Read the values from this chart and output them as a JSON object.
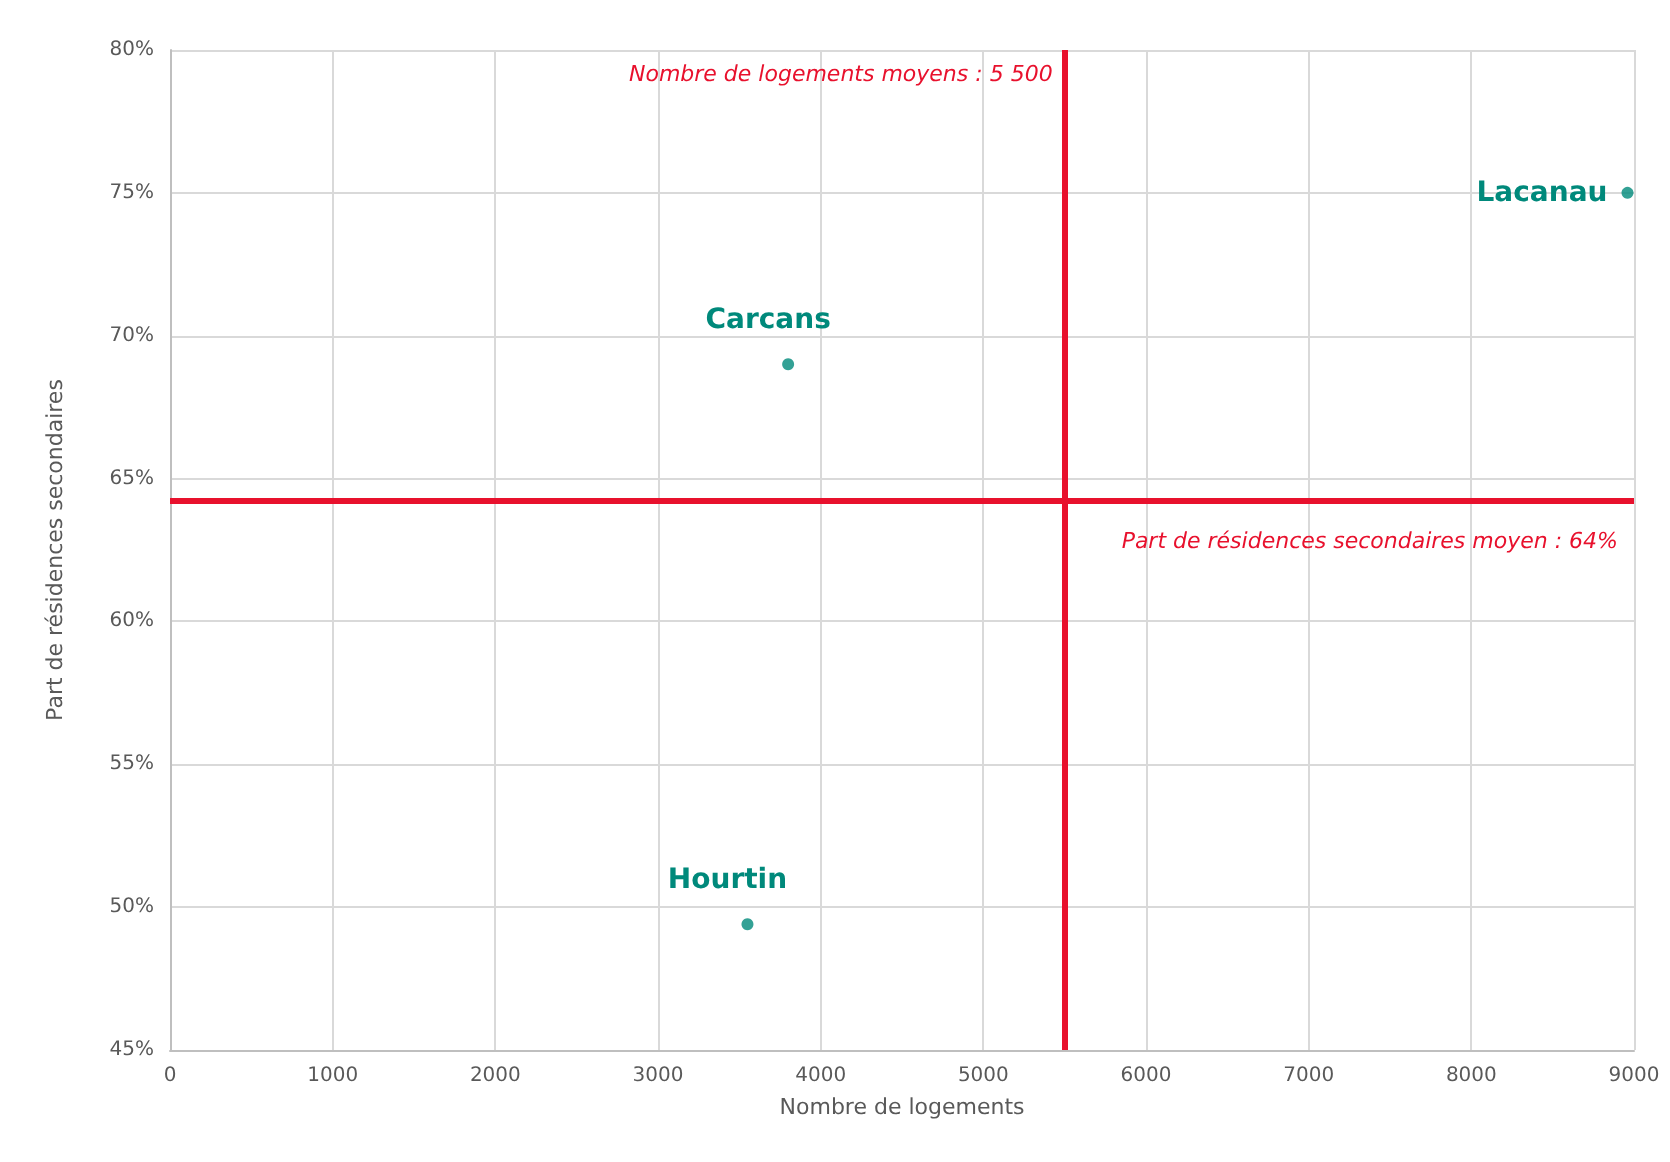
{
  "chart_data": {
    "type": "scatter",
    "xlabel": "Nombre de logements",
    "ylabel": "Part de résidences secondaires",
    "x": [
      3550,
      3800,
      8960
    ],
    "series": [
      {
        "color": "#00897b",
        "values": [
          49.4,
          69.0,
          75.0
        ]
      }
    ],
    "xlim": [
      0,
      9000
    ],
    "xticks": [
      0,
      1000,
      2000,
      3000,
      4000,
      5000,
      6000,
      7000,
      8000,
      9000
    ],
    "ylim": [
      45,
      80
    ],
    "yticks": [
      {
        "value": 45,
        "label": "45%"
      },
      {
        "value": 50,
        "label": "50%"
      },
      {
        "value": 55,
        "label": "55%"
      },
      {
        "value": 60,
        "label": "60%"
      },
      {
        "value": 65,
        "label": "65%"
      },
      {
        "value": 70,
        "label": "70%"
      },
      {
        "value": 75,
        "label": "75%"
      },
      {
        "value": 80,
        "label": "80%"
      }
    ],
    "ref_lines": [
      {
        "axis": "x",
        "value": 5500,
        "label": "Nombre de logements moyens : 5 500",
        "color": "#e8112d"
      },
      {
        "axis": "y",
        "value": 64.2,
        "label": "Part de résidences secondaires moyen : 64%",
        "color": "#e8112d"
      }
    ],
    "annotations": [
      {
        "text": "Hourtin",
        "x": 3550,
        "y": 49.4
      },
      {
        "text": "Carcans",
        "x": 3800,
        "y": 69.0
      },
      {
        "text": "Lacanau",
        "x": 8960,
        "y": 75.0
      }
    ],
    "grid": true,
    "marker": "circle"
  }
}
